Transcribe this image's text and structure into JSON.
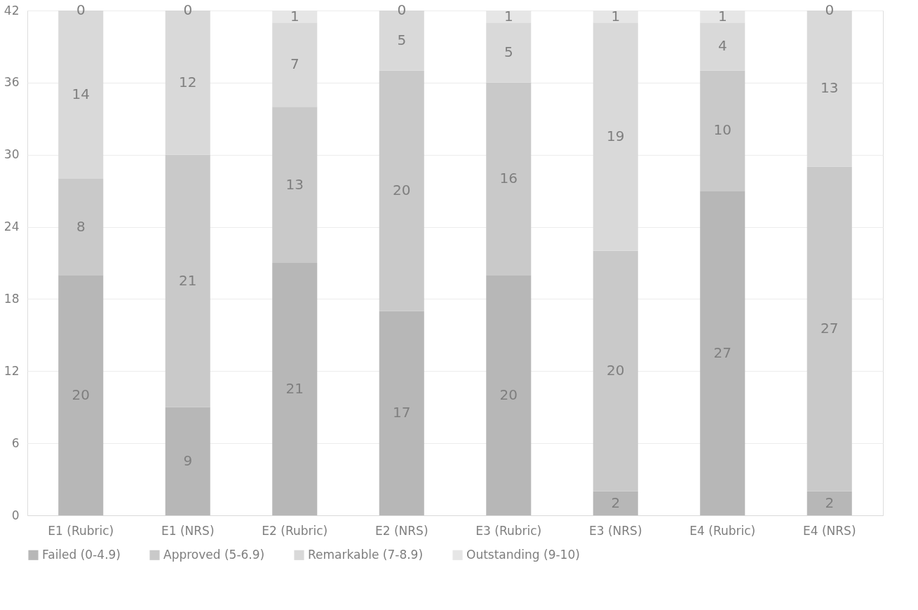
{
  "chart_data": {
    "type": "bar",
    "stacked": true,
    "categories": [
      "E1 (Rubric)",
      "E1 (NRS)",
      "E2 (Rubric)",
      "E2 (NRS)",
      "E3 (Rubric)",
      "E3 (NRS)",
      "E4 (Rubric)",
      "E4 (NRS)"
    ],
    "series": [
      {
        "name": "Failed (0-4.9)",
        "color": "#b7b7b7",
        "values": [
          20,
          9,
          21,
          17,
          20,
          2,
          27,
          2
        ]
      },
      {
        "name": "Approved (5-6.9)",
        "color": "#c9c9c9",
        "values": [
          8,
          21,
          13,
          20,
          16,
          20,
          10,
          27
        ]
      },
      {
        "name": "Remarkable (7-8.9)",
        "color": "#d9d9d9",
        "values": [
          14,
          12,
          7,
          5,
          5,
          19,
          4,
          13
        ]
      },
      {
        "name": "Outstanding (9-10)",
        "color": "#e6e6e6",
        "values": [
          0,
          0,
          1,
          0,
          1,
          1,
          1,
          0
        ]
      }
    ],
    "ylim": [
      0,
      42
    ],
    "yticks": [
      0,
      6,
      12,
      18,
      24,
      30,
      36,
      42
    ],
    "grid": "y",
    "legend": "bottom",
    "data_labels": true
  }
}
